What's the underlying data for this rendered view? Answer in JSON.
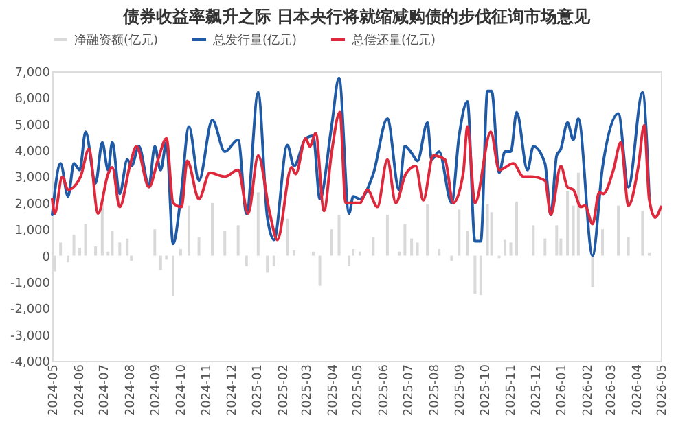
{
  "chart_data": {
    "type": "line",
    "title": "债券收益率飙升之际 日本央行将就缩减购债的步伐征询市场意见",
    "xlim": [
      "2024-05-01",
      "2026-05-01"
    ],
    "xticks": [
      "2024-05",
      "2024-06",
      "2024-07",
      "2024-08",
      "2024-09",
      "2024-10",
      "2024-11",
      "2024-12",
      "2025-01",
      "2025-02",
      "2025-03",
      "2025-04",
      "2025-05",
      "2025-06",
      "2025-07",
      "2025-08",
      "2025-09",
      "2025-10",
      "2025-11",
      "2025-12",
      "2026-01",
      "2026-02",
      "2026-03",
      "2026-04",
      "2026-05"
    ],
    "ylim": [
      -4000,
      7000
    ],
    "yticks": [
      {
        "value": -4000,
        "label": "-4,000"
      },
      {
        "value": -3000,
        "label": "-3,000"
      },
      {
        "value": -2000,
        "label": "-2,000"
      },
      {
        "value": -1000,
        "label": "-1,000"
      },
      0,
      {
        "value": 1000,
        "label": "1,000"
      },
      {
        "value": 2000,
        "label": "2,000"
      },
      {
        "value": 3000,
        "label": "3,000"
      },
      {
        "value": 4000,
        "label": "4,000"
      },
      {
        "value": 5000,
        "label": "5,000"
      },
      {
        "value": 6000,
        "label": "6,000"
      },
      {
        "value": 7000,
        "label": "7,000"
      }
    ],
    "legend": "top",
    "grid": false,
    "series": [
      {
        "name": "净融资额(亿元)",
        "type": "bar",
        "color": "#d9d9d9",
        "x": [
          "2024-05-04",
          "2024-05-11",
          "2024-05-20",
          "2024-05-27",
          "2024-06-03",
          "2024-06-10",
          "2024-06-22",
          "2024-06-30",
          "2024-07-07",
          "2024-07-12",
          "2024-07-21",
          "2024-07-30",
          "2024-08-04",
          "2024-08-13",
          "2024-08-25",
          "2024-09-01",
          "2024-09-08",
          "2024-09-15",
          "2024-09-23",
          "2024-10-02",
          "2024-10-12",
          "2024-10-24",
          "2024-11-09",
          "2024-11-24",
          "2024-12-10",
          "2024-12-20",
          "2025-01-03",
          "2025-01-14",
          "2025-01-22",
          "2025-02-07",
          "2025-02-15",
          "2025-03-01",
          "2025-03-10",
          "2025-03-18",
          "2025-04-01",
          "2025-04-10",
          "2025-04-22",
          "2025-04-27",
          "2025-05-05",
          "2025-05-21",
          "2025-06-07",
          "2025-06-21",
          "2025-06-28",
          "2025-07-06",
          "2025-07-13",
          "2025-07-25",
          "2025-07-30",
          "2025-08-08",
          "2025-08-23",
          "2025-09-01",
          "2025-09-11",
          "2025-09-20",
          "2025-09-27",
          "2025-10-05",
          "2025-10-10",
          "2025-10-19",
          "2025-10-26",
          "2025-11-02",
          "2025-11-09",
          "2025-11-22",
          "2025-11-29",
          "2025-12-13",
          "2025-12-20",
          "2025-12-27",
          "2026-01-01",
          "2026-01-09",
          "2026-01-16",
          "2026-01-22",
          "2026-02-08",
          "2026-02-20",
          "2026-03-11",
          "2026-03-23",
          "2026-04-09",
          "2026-04-17"
        ],
        "values": [
          -600,
          500,
          -250,
          800,
          300,
          1200,
          350,
          2000,
          150,
          950,
          500,
          650,
          -200,
          null,
          null,
          1000,
          -550,
          -150,
          -1550,
          250,
          1900,
          700,
          2000,
          950,
          1150,
          -400,
          2400,
          -650,
          -400,
          1400,
          200,
          0,
          150,
          -1150,
          1000,
          1550,
          -400,
          250,
          150,
          700,
          1550,
          150,
          1200,
          650,
          500,
          1950,
          null,
          250,
          -200,
          1750,
          950,
          -1450,
          -1500,
          1950,
          1650,
          -100,
          600,
          500,
          2050,
          null,
          1150,
          650,
          0,
          1150,
          650,
          2450,
          1900,
          3150,
          -1200,
          1000,
          1900,
          700,
          1700,
          100
        ]
      },
      {
        "name": "总发行量(亿元)",
        "color": "#1f5aa6",
        "x": [
          "2024-05-01",
          "2024-05-11",
          "2024-05-20",
          "2024-05-27",
          "2024-06-03",
          "2024-06-10",
          "2024-06-22",
          "2024-06-30",
          "2024-07-07",
          "2024-07-12",
          "2024-07-21",
          "2024-07-30",
          "2024-08-04",
          "2024-08-13",
          "2024-08-25",
          "2024-09-01",
          "2024-09-08",
          "2024-09-15",
          "2024-09-23",
          "2024-10-02",
          "2024-10-12",
          "2024-10-24",
          "2024-11-09",
          "2024-11-24",
          "2024-12-10",
          "2024-12-20",
          "2025-01-03",
          "2025-01-14",
          "2025-01-22",
          "2025-02-07",
          "2025-02-15",
          "2025-03-01",
          "2025-03-10",
          "2025-03-18",
          "2025-04-01",
          "2025-04-10",
          "2025-04-22",
          "2025-04-27",
          "2025-05-05",
          "2025-05-21",
          "2025-06-07",
          "2025-06-21",
          "2025-06-28",
          "2025-07-06",
          "2025-07-13",
          "2025-07-25",
          "2025-07-30",
          "2025-08-08",
          "2025-08-23",
          "2025-09-01",
          "2025-09-11",
          "2025-09-20",
          "2025-09-27",
          "2025-10-05",
          "2025-10-10",
          "2025-10-19",
          "2025-10-26",
          "2025-11-02",
          "2025-11-09",
          "2025-11-22",
          "2025-11-29",
          "2025-12-13",
          "2025-12-20",
          "2025-12-27",
          "2026-01-01",
          "2026-01-09",
          "2026-01-16",
          "2026-01-22",
          "2026-02-08",
          "2026-02-20",
          "2026-03-11",
          "2026-03-23",
          "2026-04-09",
          "2026-04-17"
        ],
        "values": [
          1550,
          3500,
          2250,
          3500,
          3250,
          4700,
          2750,
          4300,
          3250,
          4300,
          2350,
          3650,
          3400,
          4150,
          2650,
          4150,
          3250,
          4300,
          450,
          2150,
          4900,
          2850,
          5150,
          3950,
          4400,
          1600,
          6200,
          1450,
          600,
          4200,
          3400,
          4450,
          4550,
          2150,
          4900,
          6750,
          1600,
          2250,
          2150,
          3100,
          5200,
          2500,
          4150,
          3900,
          3600,
          5050,
          3650,
          3950,
          2000,
          4550,
          5850,
          550,
          550,
          6250,
          6250,
          3150,
          3950,
          3950,
          5450,
          3250,
          4150,
          3500,
          1550,
          3800,
          4050,
          5050,
          4400,
          5200,
          0,
          3350,
          5400,
          2600,
          6200,
          2250
        ]
      },
      {
        "name": "总偿还量(亿元)",
        "color": "#e0283c",
        "x": [
          "2024-05-01",
          "2024-05-04",
          "2024-05-13",
          "2024-05-20",
          "2024-06-04",
          "2024-06-14",
          "2024-06-25",
          "2024-07-07",
          "2024-07-12",
          "2024-07-21",
          "2024-08-02",
          "2024-08-10",
          "2024-08-25",
          "2024-09-05",
          "2024-09-15",
          "2024-09-23",
          "2024-10-03",
          "2024-10-10",
          "2024-10-24",
          "2024-11-06",
          "2024-11-24",
          "2024-12-10",
          "2024-12-22",
          "2025-01-03",
          "2025-01-17",
          "2025-01-26",
          "2025-02-12",
          "2025-02-17",
          "2025-03-01",
          "2025-03-06",
          "2025-03-13",
          "2025-03-23",
          "2025-04-01",
          "2025-04-11",
          "2025-04-18",
          "2025-05-05",
          "2025-05-14",
          "2025-05-26",
          "2025-06-07",
          "2025-06-17",
          "2025-06-29",
          "2025-07-11",
          "2025-07-20",
          "2025-08-01",
          "2025-08-15",
          "2025-08-25",
          "2025-09-06",
          "2025-09-11",
          "2025-09-20",
          "2025-10-09",
          "2025-10-19",
          "2025-11-05",
          "2025-11-17",
          "2025-11-27",
          "2025-12-13",
          "2025-12-20",
          "2026-01-01",
          "2026-01-09",
          "2026-01-16",
          "2026-01-25",
          "2026-01-30",
          "2026-02-08",
          "2026-02-16",
          "2026-02-21",
          "2026-03-05",
          "2026-03-14",
          "2026-03-23",
          "2026-04-04",
          "2026-04-11",
          "2026-04-17",
          "2026-04-24",
          "2026-05-01"
        ],
        "values": [
          2150,
          1600,
          3000,
          2500,
          3000,
          4050,
          1600,
          3100,
          3350,
          1850,
          3400,
          4150,
          2600,
          3650,
          4450,
          2000,
          1850,
          3600,
          2150,
          3150,
          3000,
          3250,
          1600,
          3800,
          1600,
          600,
          3350,
          3100,
          4450,
          4150,
          4650,
          1700,
          3900,
          5450,
          2000,
          2000,
          2500,
          1850,
          3650,
          2000,
          3100,
          3400,
          2100,
          3800,
          3650,
          2000,
          3150,
          4900,
          2000,
          4700,
          3250,
          3500,
          3000,
          3000,
          2850,
          1550,
          3400,
          2600,
          2500,
          1850,
          1900,
          1200,
          2400,
          2350,
          3250,
          4300,
          1900,
          3400,
          4950,
          2150,
          1450,
          1850
        ]
      }
    ]
  }
}
